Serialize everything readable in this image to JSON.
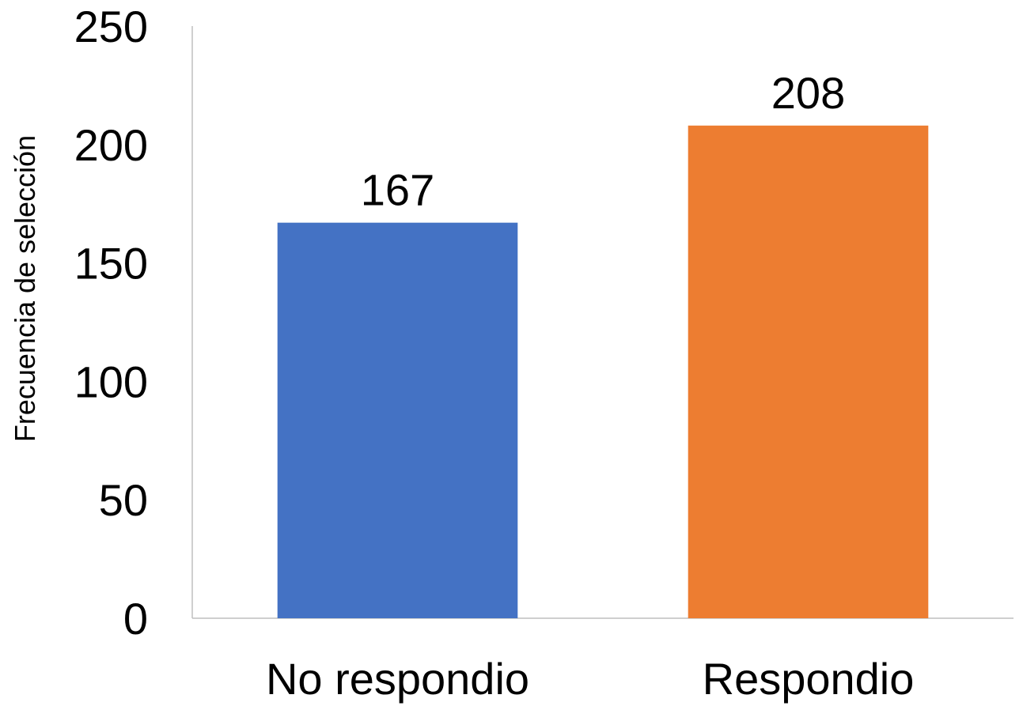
{
  "chart_data": {
    "type": "bar",
    "categories": [
      "No respondio",
      "Respondio"
    ],
    "values": [
      167,
      208
    ],
    "colors": [
      "#4472C4",
      "#ED7D31"
    ],
    "data_labels": [
      "167",
      "208"
    ],
    "ylabel": "Frecuencia de selección",
    "xlabel": "",
    "ylim": [
      0,
      250
    ],
    "yticks": [
      0,
      50,
      100,
      150,
      200,
      250
    ],
    "ytick_labels": [
      "0",
      "50",
      "100",
      "150",
      "200",
      "250"
    ],
    "grid": false,
    "legend": false
  }
}
